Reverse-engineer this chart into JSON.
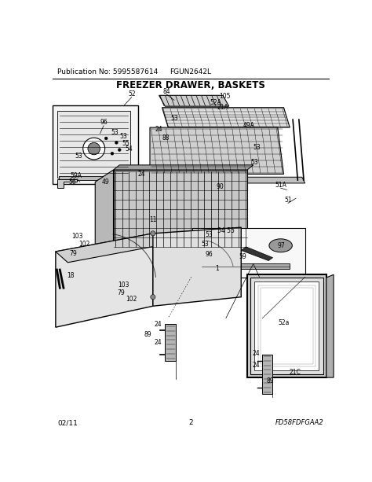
{
  "pub_no": "Publication No: 5995587614",
  "model": "FGUN2642L",
  "title": "FREEZER DRAWER, BASKETS",
  "footer_left": "02/11",
  "footer_center": "2",
  "footer_right": "FD58FDFGAA2",
  "bg_color": "#ffffff",
  "text_color": "#000000",
  "fig_width": 4.74,
  "fig_height": 6.13,
  "dpi": 100,
  "title_fontsize": 8.5,
  "label_fontsize": 5.5,
  "header_fontsize": 6.5,
  "footer_fontsize": 6.5
}
